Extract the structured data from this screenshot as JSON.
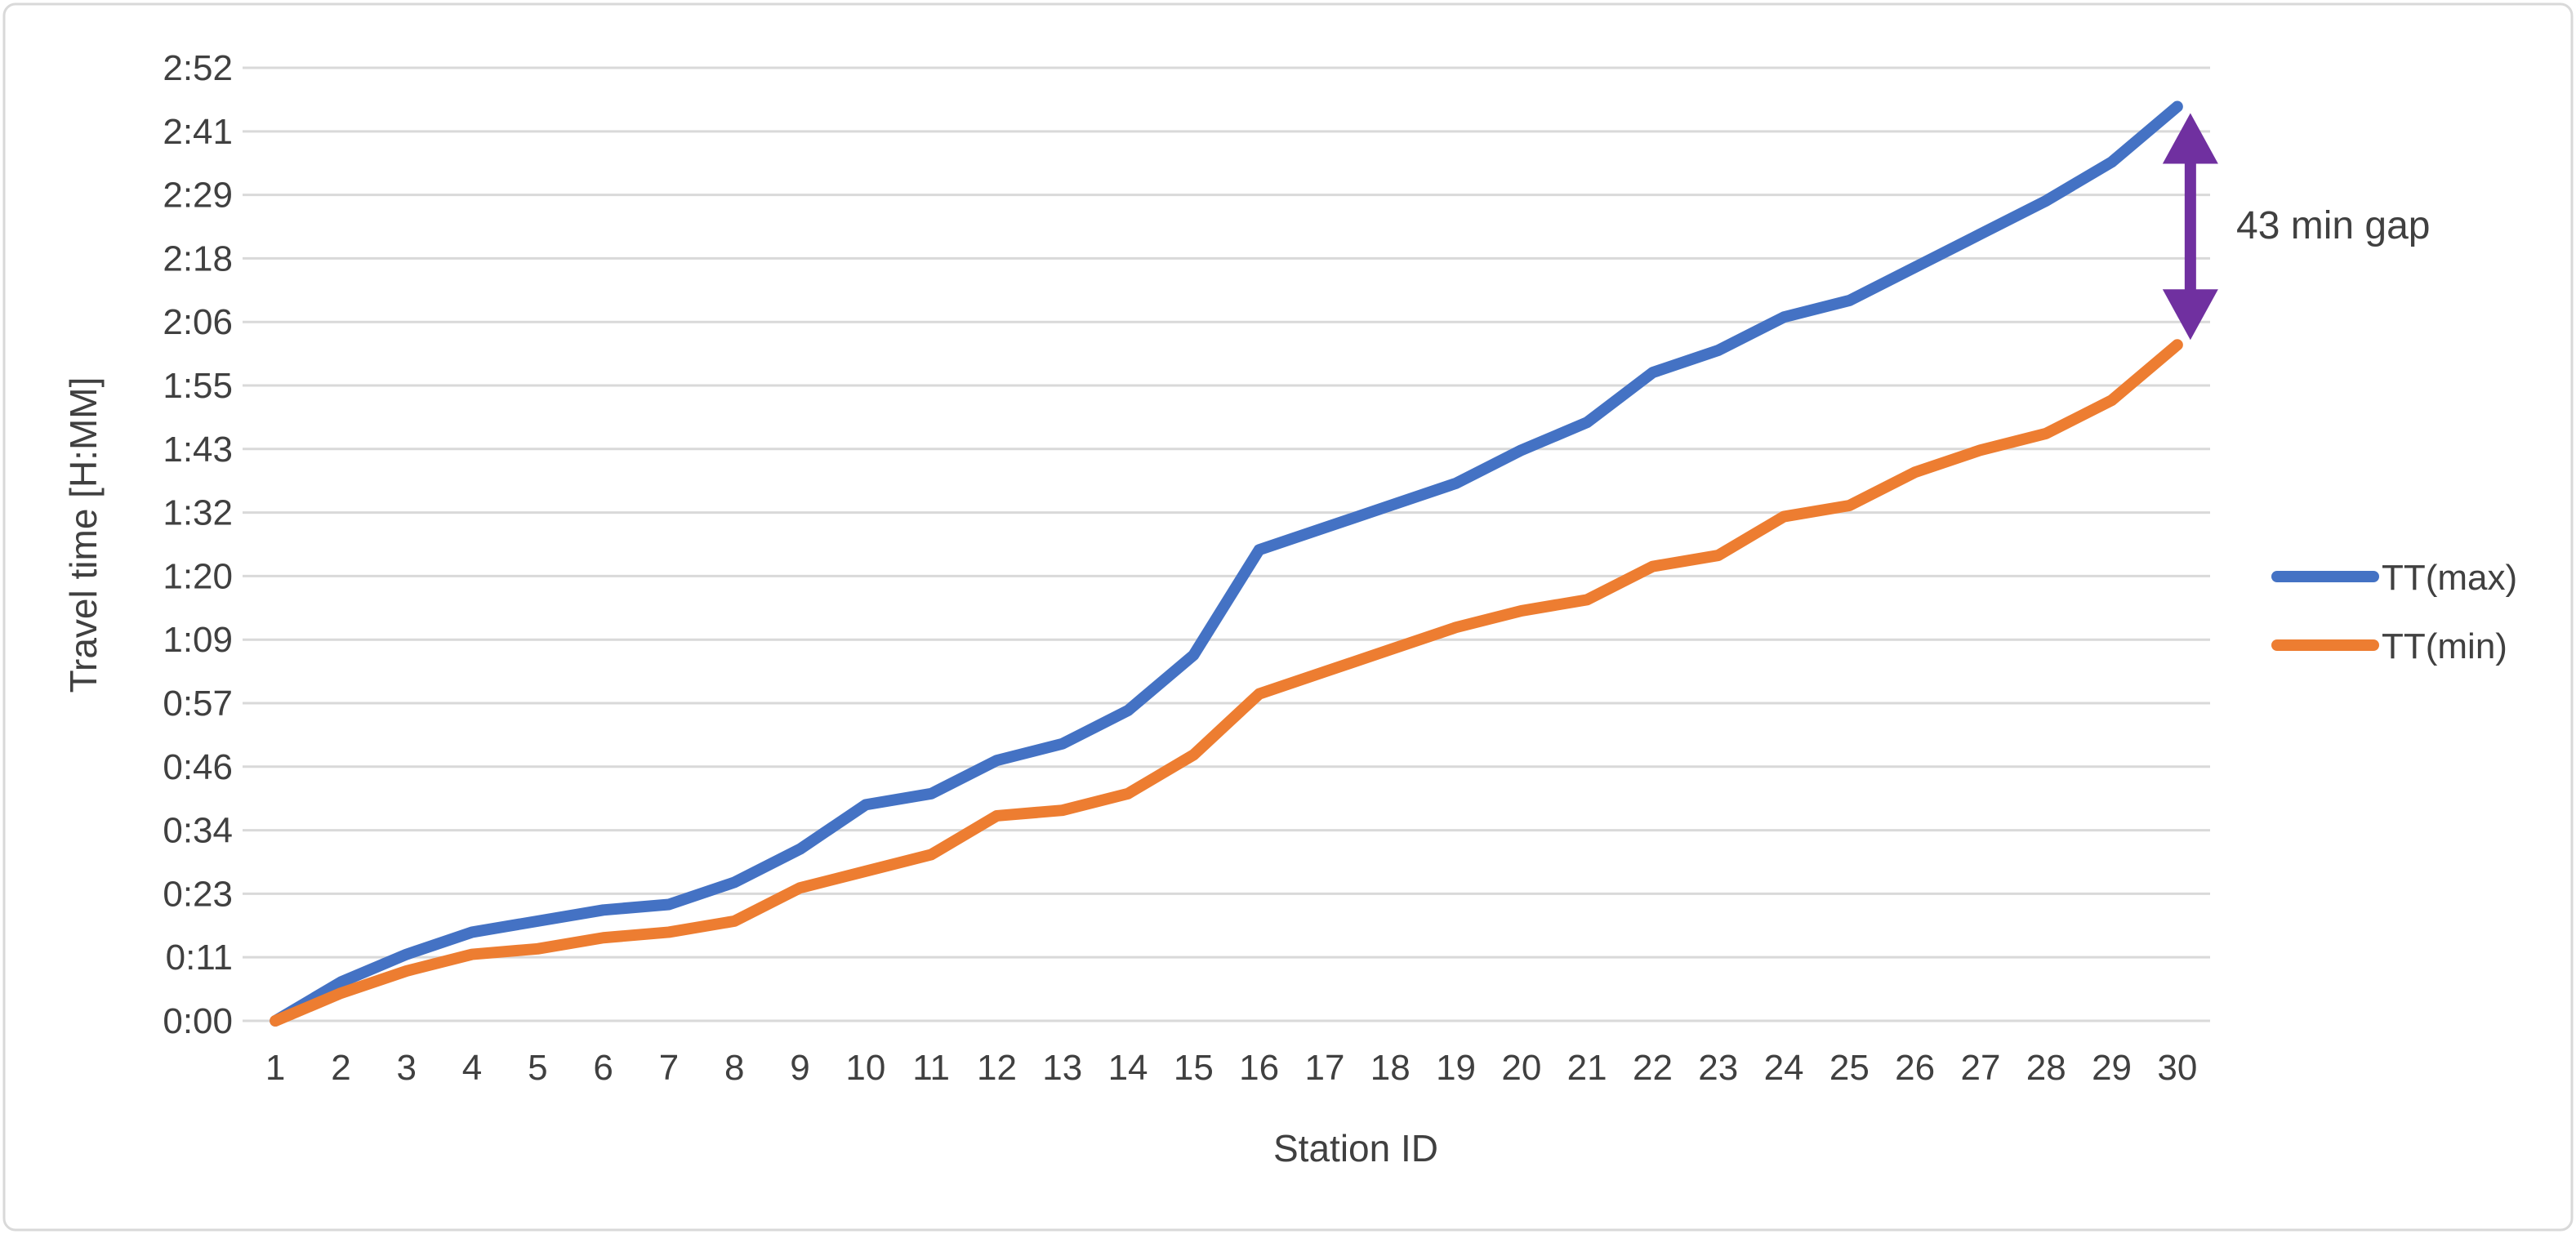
{
  "chart_data": {
    "type": "line",
    "title": "",
    "xlabel": "Station ID",
    "ylabel": "Travel time [H:MM]",
    "x": [
      1,
      2,
      3,
      4,
      5,
      6,
      7,
      8,
      9,
      10,
      11,
      12,
      13,
      14,
      15,
      16,
      17,
      18,
      19,
      20,
      21,
      22,
      23,
      24,
      25,
      26,
      27,
      28,
      29,
      30
    ],
    "series": [
      {
        "name": "TT(max)",
        "color": "#4472C4",
        "values_hmm": [
          "0:00",
          "0:07",
          "0:12",
          "0:16",
          "0:18",
          "0:20",
          "0:21",
          "0:25",
          "0:31",
          "0:39",
          "0:41",
          "0:47",
          "0:50",
          "0:56",
          "1:06",
          "1:25",
          "1:29",
          "1:33",
          "1:37",
          "1:43",
          "1:48",
          "1:57",
          "2:01",
          "2:07",
          "2:10",
          "2:16",
          "2:22",
          "2:28",
          "2:35",
          "2:45"
        ],
        "values_min": [
          0,
          7,
          12,
          16,
          18,
          20,
          21,
          25,
          31,
          39,
          41,
          47,
          50,
          56,
          66,
          85,
          89,
          93,
          97,
          103,
          108,
          117,
          121,
          127,
          130,
          136,
          142,
          148,
          155,
          165
        ]
      },
      {
        "name": "TT(min)",
        "color": "#ED7D31",
        "values_hmm": [
          "0:00",
          "0:05",
          "0:09",
          "0:12",
          "0:13",
          "0:15",
          "0:16",
          "0:18",
          "0:24",
          "0:27",
          "0:30",
          "0:37",
          "0:38",
          "0:41",
          "0:48",
          "0:59",
          "1:03",
          "1:07",
          "1:11",
          "1:14",
          "1:16",
          "1:22",
          "1:24",
          "1:31",
          "1:33",
          "1:39",
          "1:43",
          "1:46",
          "1:52",
          "2:02"
        ],
        "values_min": [
          0,
          5,
          9,
          12,
          13,
          15,
          16,
          18,
          24,
          27,
          30,
          37,
          38,
          41,
          48,
          59,
          63,
          67,
          71,
          74,
          76,
          82,
          84,
          91,
          93,
          99,
          103,
          106,
          112,
          122
        ]
      }
    ],
    "y_ticks": [
      {
        "label": "0:00",
        "minutes": 0
      },
      {
        "label": "0:11",
        "minutes": 11.47
      },
      {
        "label": "0:23",
        "minutes": 22.93
      },
      {
        "label": "0:34",
        "minutes": 34.4
      },
      {
        "label": "0:46",
        "minutes": 45.87
      },
      {
        "label": "0:57",
        "minutes": 57.33
      },
      {
        "label": "1:09",
        "minutes": 68.8
      },
      {
        "label": "1:20",
        "minutes": 80.27
      },
      {
        "label": "1:32",
        "minutes": 91.73
      },
      {
        "label": "1:43",
        "minutes": 103.2
      },
      {
        "label": "1:55",
        "minutes": 114.67
      },
      {
        "label": "2:06",
        "minutes": 126.13
      },
      {
        "label": "2:18",
        "minutes": 137.6
      },
      {
        "label": "2:29",
        "minutes": 149.07
      },
      {
        "label": "2:41",
        "minutes": 160.53
      },
      {
        "label": "2:52",
        "minutes": 172
      }
    ],
    "ylim_minutes": [
      0,
      172
    ],
    "grid": true,
    "legend_position": "right",
    "annotation": {
      "label": "43 min gap",
      "gap_minutes": 43,
      "at_station": 30,
      "arrow_color": "#7030A0",
      "from_series": "TT(max)",
      "to_series": "TT(min)"
    },
    "colors": {
      "grid": "#D9D9D9",
      "text": "#404040",
      "background": "#FFFFFF",
      "border": "#D9D9D9"
    }
  }
}
